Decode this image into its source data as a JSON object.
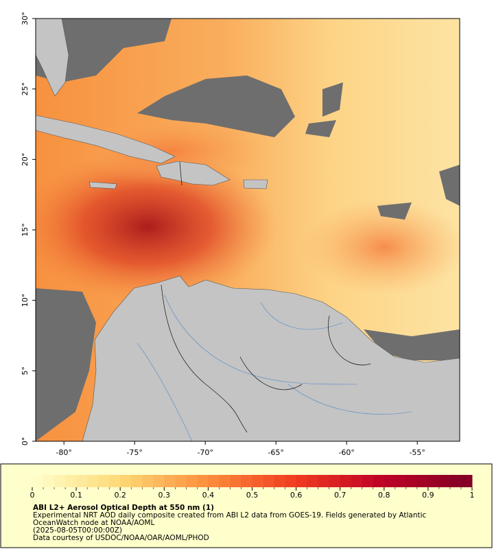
{
  "map": {
    "xlim": [
      -82,
      -52
    ],
    "ylim": [
      0,
      30
    ],
    "xticks": [
      {
        "value": -80,
        "label": "-80°"
      },
      {
        "value": -75,
        "label": "-75°"
      },
      {
        "value": -70,
        "label": "-70°"
      },
      {
        "value": -65,
        "label": "-65°"
      },
      {
        "value": -60,
        "label": "-60°"
      },
      {
        "value": -55,
        "label": "-55°"
      }
    ],
    "yticks": [
      {
        "value": 0,
        "label": "0°"
      },
      {
        "value": 5,
        "label": "5°"
      },
      {
        "value": 10,
        "label": "10°"
      },
      {
        "value": 15,
        "label": "15°"
      },
      {
        "value": 20,
        "label": "20°"
      },
      {
        "value": 25,
        "label": "25°"
      },
      {
        "value": 30,
        "label": "30°"
      }
    ]
  },
  "colorbar": {
    "lim": [
      0,
      1
    ],
    "ticks": [
      0,
      0.1,
      0.2,
      0.3,
      0.4,
      0.5,
      0.6,
      0.7,
      0.8,
      0.9,
      1
    ]
  },
  "caption": {
    "title": "ABI L2+ Aerosol Optical Depth at 550 nm (1)",
    "description": [
      "Experimental NRT AOD daily composite created from ABI L2 data from GOES-19. Fields generated by Atlantic",
      "OceanWatch node at NOAA/AOML"
    ],
    "date": "(2025-08-05T00:00:00Z)",
    "credit": "Data courtesy of USDOC/NOAA/OAR/AOML/PHOD"
  }
}
